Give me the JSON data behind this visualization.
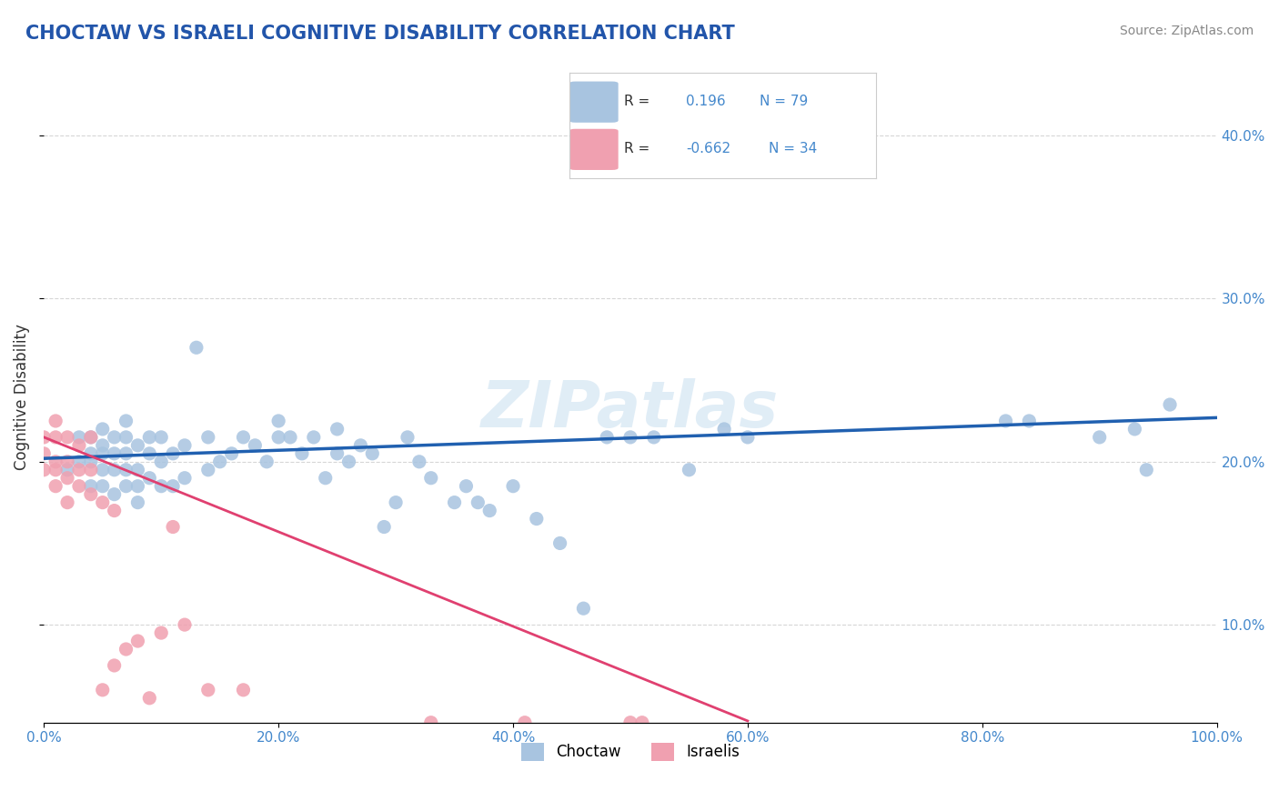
{
  "title": "CHOCTAW VS ISRAELI COGNITIVE DISABILITY CORRELATION CHART",
  "source": "Source: ZipAtlas.com",
  "xlabel": "",
  "ylabel": "Cognitive Disability",
  "xlim": [
    0,
    1.0
  ],
  "ylim": [
    0.04,
    0.44
  ],
  "ytick_labels": [
    "10.0%",
    "20.0%",
    "30.0%",
    "40.0%"
  ],
  "ytick_vals": [
    0.1,
    0.2,
    0.3,
    0.4
  ],
  "xtick_labels": [
    "0.0%",
    "20.0%",
    "40.0%",
    "60.0%",
    "80.0%",
    "100.0%"
  ],
  "xtick_vals": [
    0.0,
    0.2,
    0.4,
    0.6,
    0.8,
    1.0
  ],
  "blue_R": 0.196,
  "blue_N": 79,
  "pink_R": -0.662,
  "pink_N": 34,
  "blue_color": "#a8c4e0",
  "pink_color": "#f0a0b0",
  "blue_line_color": "#2060b0",
  "pink_line_color": "#e04070",
  "watermark": "ZIPatlas",
  "title_color": "#2255aa",
  "legend_label_blue": "Choctaw",
  "legend_label_pink": "Israelis",
  "blue_scatter_x": [
    0.02,
    0.03,
    0.03,
    0.04,
    0.04,
    0.04,
    0.04,
    0.05,
    0.05,
    0.05,
    0.05,
    0.05,
    0.06,
    0.06,
    0.06,
    0.06,
    0.07,
    0.07,
    0.07,
    0.07,
    0.07,
    0.08,
    0.08,
    0.08,
    0.08,
    0.09,
    0.09,
    0.09,
    0.1,
    0.1,
    0.1,
    0.11,
    0.11,
    0.12,
    0.12,
    0.13,
    0.14,
    0.14,
    0.15,
    0.16,
    0.17,
    0.18,
    0.19,
    0.2,
    0.2,
    0.21,
    0.22,
    0.23,
    0.24,
    0.25,
    0.25,
    0.26,
    0.27,
    0.28,
    0.29,
    0.3,
    0.31,
    0.32,
    0.33,
    0.35,
    0.36,
    0.37,
    0.38,
    0.4,
    0.42,
    0.44,
    0.46,
    0.48,
    0.5,
    0.52,
    0.55,
    0.58,
    0.6,
    0.82,
    0.84,
    0.9,
    0.93,
    0.94,
    0.96
  ],
  "blue_scatter_y": [
    0.195,
    0.2,
    0.215,
    0.185,
    0.2,
    0.205,
    0.215,
    0.185,
    0.195,
    0.205,
    0.21,
    0.22,
    0.18,
    0.195,
    0.205,
    0.215,
    0.185,
    0.195,
    0.205,
    0.215,
    0.225,
    0.175,
    0.185,
    0.195,
    0.21,
    0.19,
    0.205,
    0.215,
    0.185,
    0.2,
    0.215,
    0.185,
    0.205,
    0.19,
    0.21,
    0.27,
    0.195,
    0.215,
    0.2,
    0.205,
    0.215,
    0.21,
    0.2,
    0.215,
    0.225,
    0.215,
    0.205,
    0.215,
    0.19,
    0.205,
    0.22,
    0.2,
    0.21,
    0.205,
    0.16,
    0.175,
    0.215,
    0.2,
    0.19,
    0.175,
    0.185,
    0.175,
    0.17,
    0.185,
    0.165,
    0.15,
    0.11,
    0.215,
    0.215,
    0.215,
    0.195,
    0.22,
    0.215,
    0.225,
    0.225,
    0.215,
    0.22,
    0.195,
    0.235
  ],
  "pink_scatter_x": [
    0.0,
    0.0,
    0.0,
    0.01,
    0.01,
    0.01,
    0.01,
    0.01,
    0.02,
    0.02,
    0.02,
    0.02,
    0.03,
    0.03,
    0.03,
    0.04,
    0.04,
    0.04,
    0.05,
    0.05,
    0.06,
    0.06,
    0.07,
    0.08,
    0.09,
    0.1,
    0.11,
    0.12,
    0.14,
    0.17,
    0.33,
    0.41,
    0.5,
    0.51
  ],
  "pink_scatter_y": [
    0.195,
    0.205,
    0.215,
    0.185,
    0.195,
    0.2,
    0.215,
    0.225,
    0.175,
    0.19,
    0.2,
    0.215,
    0.185,
    0.195,
    0.21,
    0.18,
    0.195,
    0.215,
    0.175,
    0.06,
    0.17,
    0.075,
    0.085,
    0.09,
    0.055,
    0.095,
    0.16,
    0.1,
    0.06,
    0.06,
    0.04,
    0.04,
    0.04,
    0.04
  ],
  "blue_line_x": [
    0.0,
    1.0
  ],
  "blue_line_y_intercept": 0.202,
  "blue_line_slope": 0.025,
  "pink_line_x": [
    0.0,
    0.6
  ],
  "pink_line_y_intercept": 0.215,
  "pink_line_slope": -0.29
}
